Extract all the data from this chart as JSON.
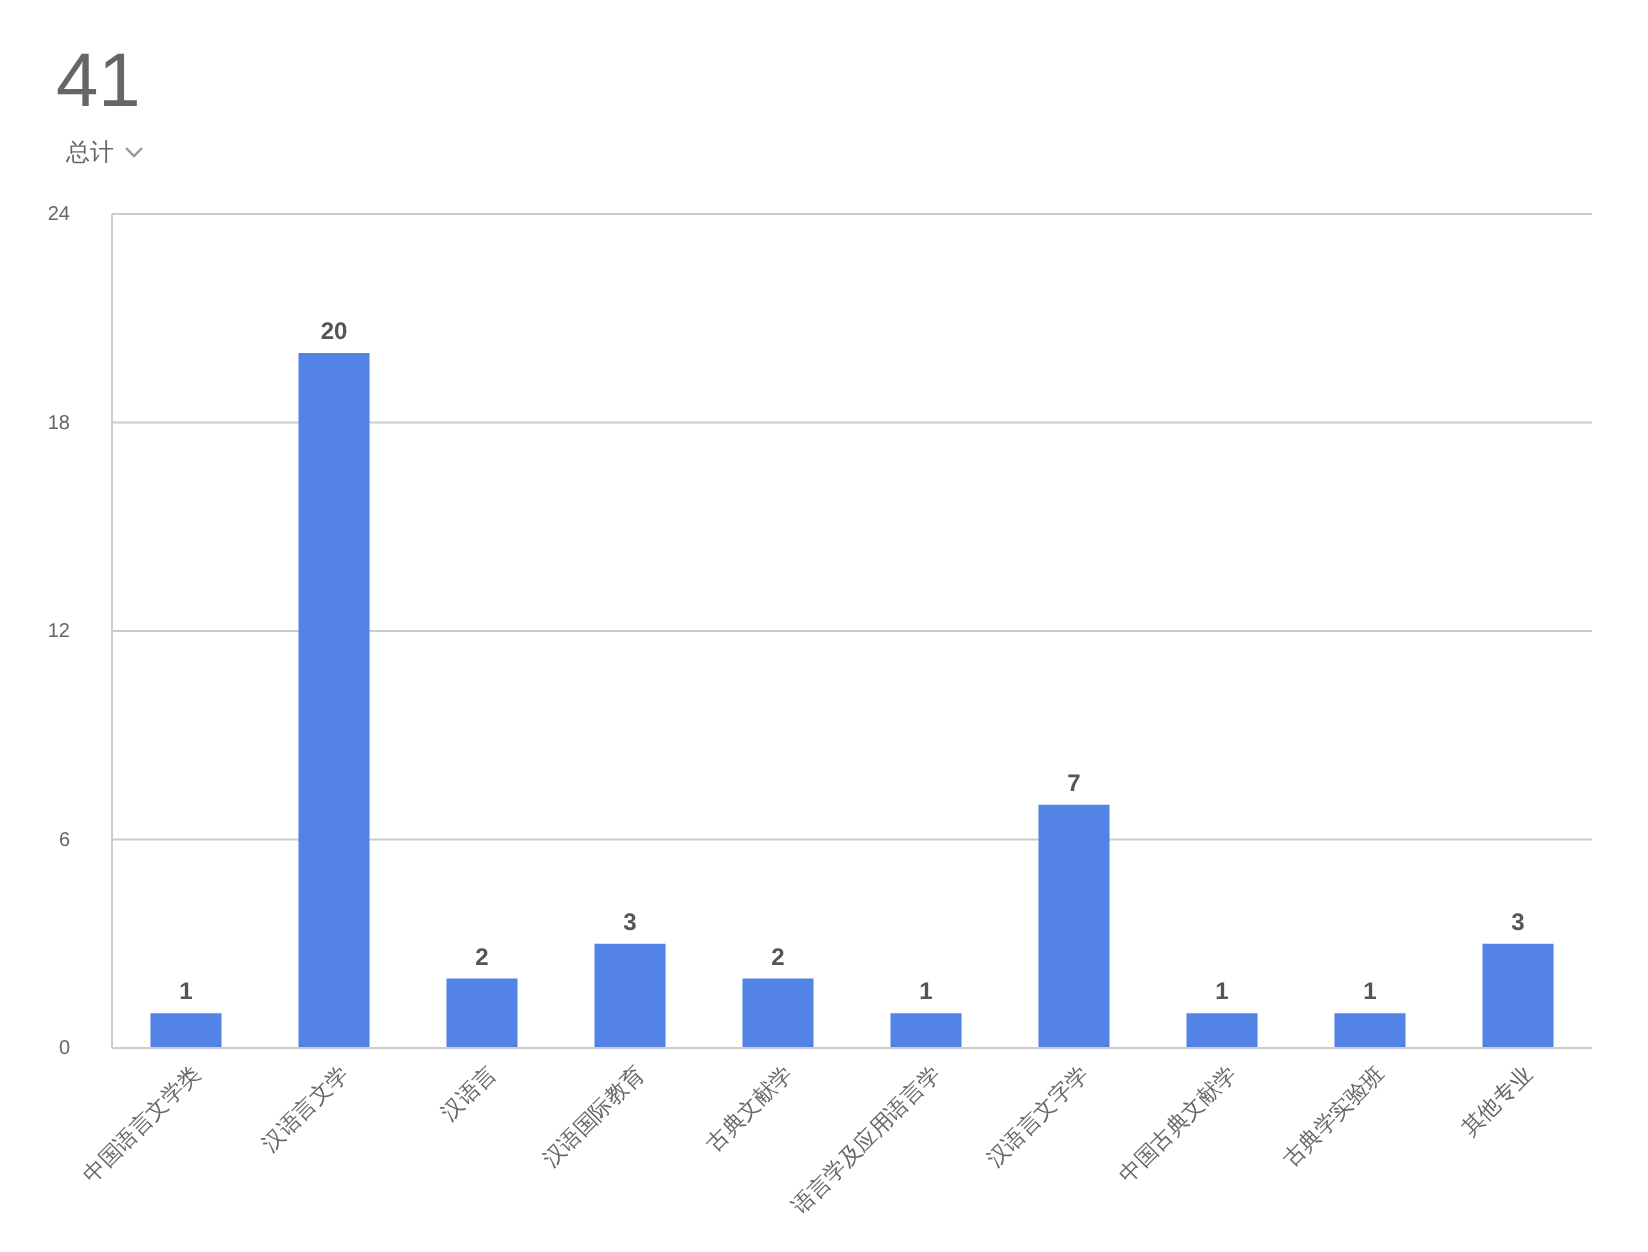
{
  "chart_data": {
    "type": "bar",
    "title": "41",
    "subtitle": "总计",
    "categories": [
      "中国语言文学类",
      "汉语言文学",
      "汉语言",
      "汉语国际教育",
      "古典文献学",
      "语言学及应用语言学",
      "汉语言文字学",
      "中国古典文献学",
      "古典学实验班",
      "其他专业"
    ],
    "values": [
      1,
      20,
      2,
      3,
      2,
      1,
      7,
      1,
      1,
      3
    ],
    "color": "#5383e4",
    "ylim": [
      0,
      24
    ],
    "yticks": [
      0,
      6,
      12,
      18,
      24
    ],
    "grid": "y",
    "data_labels": true
  }
}
